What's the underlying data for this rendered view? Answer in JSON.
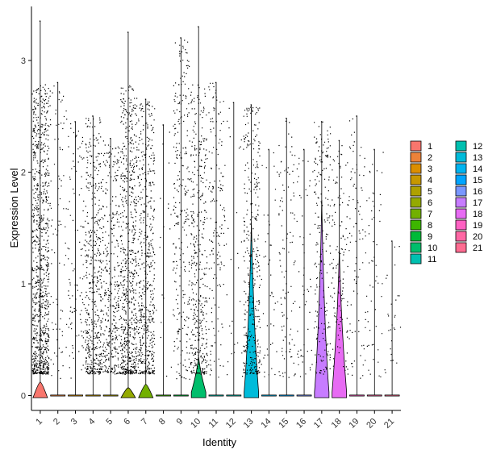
{
  "chart_data": {
    "type": "violin",
    "xlabel": "Identity",
    "ylabel": "Expression Level",
    "ylim": [
      -0.15,
      3.4
    ],
    "yticks": [
      0,
      1,
      2,
      3
    ],
    "categories": [
      "1",
      "2",
      "3",
      "4",
      "5",
      "6",
      "7",
      "8",
      "9",
      "10",
      "11",
      "12",
      "13",
      "14",
      "15",
      "16",
      "17",
      "18",
      "19",
      "20",
      "21"
    ],
    "colors": [
      "#F8766D",
      "#EC8239",
      "#DB8E00",
      "#C79800",
      "#AFA100",
      "#94AA00",
      "#72B000",
      "#3DB600",
      "#00BA38",
      "#00BE6C",
      "#00C0B0",
      "#00C0B0",
      "#00BBDA",
      "#00B4F0",
      "#00A5FF",
      "#7997FF",
      "#C77CFF",
      "#E76BF3",
      "#FF61C3",
      "#FF67A4",
      "#FF6C91"
    ],
    "max_expression": [
      3.35,
      2.8,
      2.45,
      2.5,
      2.3,
      3.25,
      2.65,
      2.42,
      3.2,
      3.3,
      2.8,
      2.62,
      2.6,
      2.2,
      2.48,
      2.2,
      2.45,
      2.28,
      2.5,
      2.2,
      1.38
    ],
    "cell_density": [
      1.0,
      0.1,
      0.12,
      0.55,
      0.4,
      0.75,
      0.6,
      0.02,
      0.3,
      0.45,
      0.18,
      0.03,
      0.4,
      0.05,
      0.12,
      0.06,
      0.22,
      0.14,
      0.1,
      0.06,
      0.03
    ],
    "violin_peak_height": [
      0.12,
      0,
      0,
      0,
      0,
      0.07,
      0.1,
      0,
      0,
      0.35,
      0,
      0,
      1.55,
      0,
      0,
      0,
      1.75,
      1.3,
      0,
      0,
      0
    ],
    "legend": [
      "1",
      "2",
      "3",
      "4",
      "5",
      "6",
      "7",
      "8",
      "9",
      "10",
      "11",
      "12",
      "13",
      "14",
      "15",
      "16",
      "17",
      "18",
      "19",
      "20",
      "21"
    ],
    "legend_placement": "right",
    "grid": false
  }
}
